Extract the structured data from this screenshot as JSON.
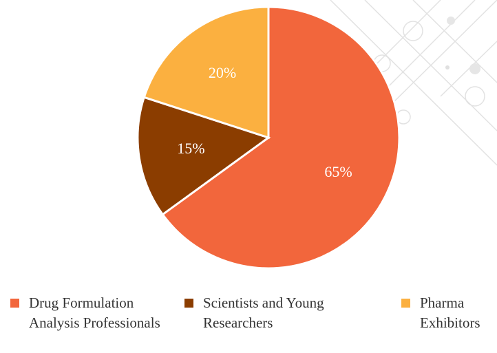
{
  "chart_data": {
    "type": "pie",
    "categories": [
      "Drug Formulation Analysis Professionals",
      "Scientists and Young Researchers",
      "Pharma Exhibitors"
    ],
    "values": [
      65,
      15,
      20
    ],
    "value_labels": [
      "65%",
      "15%",
      "20%"
    ],
    "colors": [
      "#f2663c",
      "#8b3d00",
      "#fbb040"
    ],
    "legend": "bottom"
  }
}
